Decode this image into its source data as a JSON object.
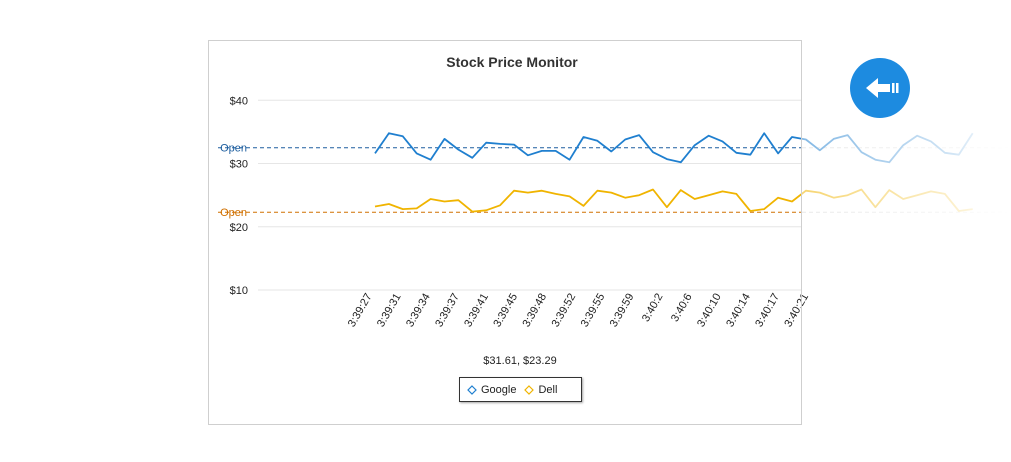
{
  "back_button": {
    "icon": "arrow-left-icon",
    "color": "#1d8be0"
  },
  "readout": "$31.61, $23.29",
  "legend": [
    {
      "label": "Google",
      "color": "#1f7fcf"
    },
    {
      "label": "Dell",
      "color": "#f0b400"
    }
  ],
  "chart_data": {
    "type": "line",
    "title": "Stock Price Monitor",
    "xlabel": "",
    "ylabel": "",
    "ylim": [
      7,
      44
    ],
    "y_ticks": [
      {
        "value": 40,
        "label": "$40"
      },
      {
        "value": 30,
        "label": "$30"
      },
      {
        "value": 20,
        "label": "$20"
      },
      {
        "value": 10,
        "label": "$10"
      }
    ],
    "x_tick_labels": [
      "3:39:27",
      "3:39:31",
      "3:39:34",
      "3:39:37",
      "3:39:41",
      "3:39:45",
      "3:39:48",
      "3:39:52",
      "3:39:55",
      "3:39:59",
      "3:40:2",
      "3:40:6",
      "3:40:10",
      "3:40:14",
      "3:40:17",
      "3:40:21"
    ],
    "plot_end_index": 44,
    "reference_lines": [
      {
        "label": "Open",
        "value": 32.5,
        "color": "#1f5f9f",
        "series": "Google"
      },
      {
        "label": "Open",
        "value": 22.3,
        "color": "#d07000",
        "series": "Dell"
      }
    ],
    "series": [
      {
        "name": "Google",
        "color": "#1f7fcf",
        "values": [
          31.6,
          34.8,
          34.3,
          31.6,
          30.6,
          33.9,
          32.2,
          30.9,
          33.3,
          33.1,
          33.0,
          31.3,
          32.0,
          32.0,
          30.6,
          34.2,
          33.6,
          31.9,
          33.8,
          34.5,
          31.8,
          30.7,
          30.2,
          32.9,
          34.4,
          33.5,
          31.7,
          31.4,
          34.8,
          31.6,
          34.2,
          33.8,
          32.1,
          33.9,
          34.5,
          31.8,
          30.6,
          30.2,
          32.9,
          34.4,
          33.5,
          31.7,
          31.4,
          34.8
        ]
      },
      {
        "name": "Dell",
        "color": "#f0b400",
        "values": [
          23.2,
          23.6,
          22.8,
          22.9,
          24.4,
          24.0,
          24.2,
          22.4,
          22.6,
          23.4,
          25.7,
          25.4,
          25.7,
          25.2,
          24.8,
          23.3,
          25.7,
          25.4,
          24.6,
          25.0,
          25.9,
          23.1,
          25.8,
          24.4,
          25.0,
          25.6,
          25.2,
          22.5,
          22.8,
          24.6,
          24.0,
          25.7,
          25.4,
          24.6,
          25.0,
          25.9,
          23.1,
          25.8,
          24.4,
          25.0,
          25.6,
          25.2,
          22.5,
          22.8
        ]
      }
    ]
  }
}
